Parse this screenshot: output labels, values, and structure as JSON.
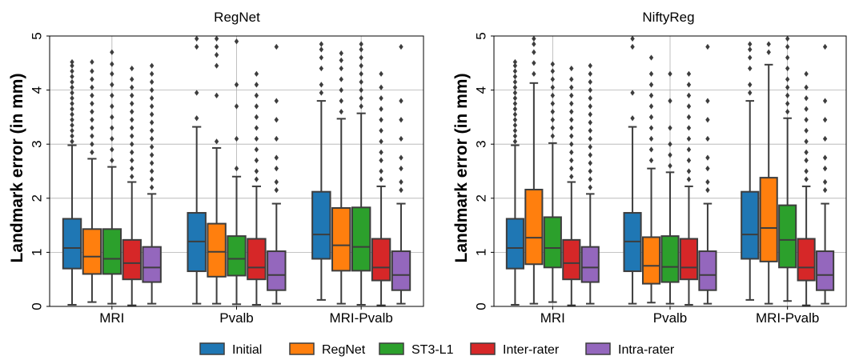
{
  "figure": {
    "legend": [
      {
        "label": "Initial",
        "color": "#1f77b4"
      },
      {
        "label": "RegNet",
        "color": "#ff7f0e"
      },
      {
        "label": "ST3-L1",
        "color": "#2ca02c"
      },
      {
        "label": "Inter-rater",
        "color": "#d62728"
      },
      {
        "label": "Intra-rater",
        "color": "#9467bd"
      }
    ]
  },
  "chart_data": [
    {
      "type": "box",
      "title": "RegNet",
      "ylabel": "Landmark error (in mm)",
      "xlabel": "",
      "ylim": [
        0,
        5
      ],
      "yticks": [
        0,
        1,
        2,
        3,
        4,
        5
      ],
      "grid": true,
      "categories": [
        "MRI",
        "Pvalb",
        "MRI-Pvalb"
      ],
      "series": [
        {
          "name": "Initial",
          "color": "#1f77b4",
          "boxes": [
            {
              "whislo": 0.03,
              "q1": 0.7,
              "med": 1.08,
              "q3": 1.62,
              "whishi": 2.98,
              "fliers": [
                3.05,
                3.15,
                3.25,
                3.35,
                3.45,
                3.55,
                3.65,
                3.75,
                3.85,
                3.95,
                4.05,
                4.15,
                4.25,
                4.35,
                4.45,
                4.52
              ]
            },
            {
              "whislo": 0.05,
              "q1": 0.65,
              "med": 1.2,
              "q3": 1.73,
              "whishi": 3.32,
              "fliers": [
                3.48,
                3.95,
                4.8,
                4.95
              ]
            },
            {
              "whislo": 0.12,
              "q1": 0.88,
              "med": 1.33,
              "q3": 2.12,
              "whishi": 3.8,
              "fliers": [
                3.95,
                4.1,
                4.4,
                4.6,
                4.75,
                4.85
              ]
            }
          ]
        },
        {
          "name": "RegNet",
          "color": "#ff7f0e",
          "boxes": [
            {
              "whislo": 0.08,
              "q1": 0.6,
              "med": 0.92,
              "q3": 1.43,
              "whishi": 2.73,
              "fliers": [
                2.85,
                3.0,
                3.15,
                3.3,
                3.45,
                3.6,
                3.75,
                3.9,
                4.05,
                4.2,
                4.35,
                4.52
              ]
            },
            {
              "whislo": 0.05,
              "q1": 0.55,
              "med": 1.01,
              "q3": 1.53,
              "whishi": 2.93,
              "fliers": [
                3.05,
                3.9,
                4.45,
                4.65,
                4.8,
                4.95
              ]
            },
            {
              "whislo": 0.05,
              "q1": 0.66,
              "med": 1.13,
              "q3": 1.82,
              "whishi": 3.47,
              "fliers": [
                3.6,
                3.8,
                4.0,
                4.2,
                4.4,
                4.55,
                4.68
              ]
            }
          ]
        },
        {
          "name": "ST3-L1",
          "color": "#2ca02c",
          "boxes": [
            {
              "whislo": 0.05,
              "q1": 0.6,
              "med": 0.88,
              "q3": 1.43,
              "whishi": 2.58,
              "fliers": [
                2.7,
                2.9,
                3.1,
                3.3,
                3.5,
                3.7,
                3.9,
                4.1,
                4.3,
                4.48,
                4.7
              ]
            },
            {
              "whislo": 0.04,
              "q1": 0.57,
              "med": 0.88,
              "q3": 1.3,
              "whishi": 2.4,
              "fliers": [
                2.55,
                3.1,
                3.7,
                4.1,
                4.9
              ]
            },
            {
              "whislo": 0.03,
              "q1": 0.66,
              "med": 1.1,
              "q3": 1.83,
              "whishi": 3.57,
              "fliers": [
                3.7,
                3.85,
                4.0,
                4.15,
                4.3,
                4.45,
                4.6,
                4.75,
                4.85
              ]
            }
          ]
        },
        {
          "name": "Inter-rater",
          "color": "#d62728",
          "boxes": [
            {
              "whislo": 0.02,
              "q1": 0.5,
              "med": 0.8,
              "q3": 1.23,
              "whishi": 2.3,
              "fliers": [
                2.4,
                2.55,
                2.7,
                2.85,
                3.0,
                3.15,
                3.3,
                3.45,
                3.6,
                3.75,
                3.9,
                4.05,
                4.2,
                4.4
              ]
            },
            {
              "whislo": 0.03,
              "q1": 0.5,
              "med": 0.72,
              "q3": 1.25,
              "whishi": 2.22,
              "fliers": [
                2.35,
                2.5,
                2.7,
                2.9,
                3.1,
                3.3,
                3.5,
                3.7,
                3.9,
                4.1,
                4.3
              ]
            },
            {
              "whislo": 0.02,
              "q1": 0.48,
              "med": 0.72,
              "q3": 1.25,
              "whishi": 2.22,
              "fliers": [
                2.35,
                2.5,
                2.7,
                2.85,
                3.05,
                3.25,
                3.45,
                3.65,
                3.85,
                4.05,
                4.3
              ]
            }
          ]
        },
        {
          "name": "Intra-rater",
          "color": "#9467bd",
          "boxes": [
            {
              "whislo": 0.05,
              "q1": 0.45,
              "med": 0.72,
              "q3": 1.1,
              "whishi": 2.08,
              "fliers": [
                2.2,
                2.35,
                2.5,
                2.65,
                2.8,
                2.95,
                3.1,
                3.25,
                3.4,
                3.55,
                3.7,
                3.85,
                4.0,
                4.15,
                4.3,
                4.45
              ]
            },
            {
              "whislo": 0.05,
              "q1": 0.3,
              "med": 0.58,
              "q3": 1.02,
              "whishi": 1.9,
              "fliers": [
                2.15,
                2.3,
                2.55,
                2.75,
                3.1,
                3.45,
                3.8,
                4.8
              ]
            },
            {
              "whislo": 0.05,
              "q1": 0.3,
              "med": 0.58,
              "q3": 1.02,
              "whishi": 1.9,
              "fliers": [
                2.15,
                2.3,
                2.55,
                2.75,
                3.1,
                3.45,
                3.8,
                4.8
              ]
            }
          ]
        }
      ]
    },
    {
      "type": "box",
      "title": "NiftyReg",
      "ylabel": "Landmark error (in mm)",
      "xlabel": "",
      "ylim": [
        0,
        5
      ],
      "yticks": [
        0,
        1,
        2,
        3,
        4,
        5
      ],
      "grid": true,
      "categories": [
        "MRI",
        "Pvalb",
        "MRI-Pvalb"
      ],
      "series": [
        {
          "name": "Initial",
          "color": "#1f77b4",
          "boxes": [
            {
              "whislo": 0.03,
              "q1": 0.7,
              "med": 1.08,
              "q3": 1.62,
              "whishi": 2.98,
              "fliers": [
                3.05,
                3.15,
                3.25,
                3.35,
                3.45,
                3.55,
                3.65,
                3.75,
                3.85,
                3.95,
                4.05,
                4.15,
                4.25,
                4.35,
                4.45,
                4.52
              ]
            },
            {
              "whislo": 0.05,
              "q1": 0.65,
              "med": 1.2,
              "q3": 1.73,
              "whishi": 3.32,
              "fliers": [
                3.48,
                3.95,
                4.8,
                4.95
              ]
            },
            {
              "whislo": 0.12,
              "q1": 0.88,
              "med": 1.33,
              "q3": 2.12,
              "whishi": 3.8,
              "fliers": [
                3.95,
                4.1,
                4.4,
                4.6,
                4.75,
                4.85
              ]
            }
          ]
        },
        {
          "name": "RegNet",
          "color": "#ff7f0e",
          "boxes": [
            {
              "whislo": 0.05,
              "q1": 0.78,
              "med": 1.27,
              "q3": 2.16,
              "whishi": 4.13,
              "fliers": [
                4.3,
                4.5,
                4.7,
                4.85,
                4.95
              ]
            },
            {
              "whislo": 0.07,
              "q1": 0.42,
              "med": 0.75,
              "q3": 1.28,
              "whishi": 2.55,
              "fliers": [
                2.7,
                2.9,
                3.1,
                3.3,
                3.5,
                3.7,
                3.9,
                4.1,
                4.3,
                4.6
              ]
            },
            {
              "whislo": 0.05,
              "q1": 0.83,
              "med": 1.45,
              "q3": 2.38,
              "whishi": 4.47,
              "fliers": [
                4.7,
                4.85
              ]
            }
          ]
        },
        {
          "name": "ST3-L1",
          "color": "#2ca02c",
          "boxes": [
            {
              "whislo": 0.08,
              "q1": 0.72,
              "med": 1.08,
              "q3": 1.65,
              "whishi": 3.02,
              "fliers": [
                3.15,
                3.3,
                3.45,
                3.6,
                3.75,
                3.9,
                4.05,
                4.2,
                4.35,
                4.48
              ]
            },
            {
              "whislo": 0.05,
              "q1": 0.45,
              "med": 0.73,
              "q3": 1.3,
              "whishi": 2.48,
              "fliers": [
                2.6,
                2.8,
                3.0,
                3.3,
                3.8,
                4.3
              ]
            },
            {
              "whislo": 0.1,
              "q1": 0.72,
              "med": 1.23,
              "q3": 1.87,
              "whishi": 3.48,
              "fliers": [
                3.6,
                3.75,
                3.9,
                4.05,
                4.2,
                4.4,
                4.6,
                4.8,
                4.95
              ]
            }
          ]
        },
        {
          "name": "Inter-rater",
          "color": "#d62728",
          "boxes": [
            {
              "whislo": 0.02,
              "q1": 0.5,
              "med": 0.8,
              "q3": 1.23,
              "whishi": 2.3,
              "fliers": [
                2.4,
                2.55,
                2.7,
                2.85,
                3.0,
                3.15,
                3.3,
                3.45,
                3.6,
                3.75,
                3.9,
                4.05,
                4.2,
                4.4
              ]
            },
            {
              "whislo": 0.03,
              "q1": 0.5,
              "med": 0.72,
              "q3": 1.25,
              "whishi": 2.22,
              "fliers": [
                2.35,
                2.5,
                2.7,
                2.9,
                3.1,
                3.3,
                3.5,
                3.7,
                3.9,
                4.1,
                4.3
              ]
            },
            {
              "whislo": 0.02,
              "q1": 0.48,
              "med": 0.72,
              "q3": 1.25,
              "whishi": 2.22,
              "fliers": [
                2.35,
                2.5,
                2.7,
                2.85,
                3.05,
                3.25,
                3.45,
                3.65,
                3.85,
                4.05,
                4.3
              ]
            }
          ]
        },
        {
          "name": "Intra-rater",
          "color": "#9467bd",
          "boxes": [
            {
              "whislo": 0.05,
              "q1": 0.45,
              "med": 0.72,
              "q3": 1.1,
              "whishi": 2.08,
              "fliers": [
                2.2,
                2.35,
                2.5,
                2.65,
                2.8,
                2.95,
                3.1,
                3.25,
                3.4,
                3.55,
                3.7,
                3.85,
                4.0,
                4.15,
                4.3,
                4.45
              ]
            },
            {
              "whislo": 0.05,
              "q1": 0.3,
              "med": 0.58,
              "q3": 1.02,
              "whishi": 1.9,
              "fliers": [
                2.15,
                2.3,
                2.55,
                2.75,
                3.1,
                3.45,
                3.8,
                4.8
              ]
            },
            {
              "whislo": 0.05,
              "q1": 0.3,
              "med": 0.58,
              "q3": 1.02,
              "whishi": 1.9,
              "fliers": [
                2.15,
                2.3,
                2.55,
                2.75,
                3.1,
                3.45,
                3.8,
                4.8
              ]
            }
          ]
        }
      ]
    }
  ]
}
